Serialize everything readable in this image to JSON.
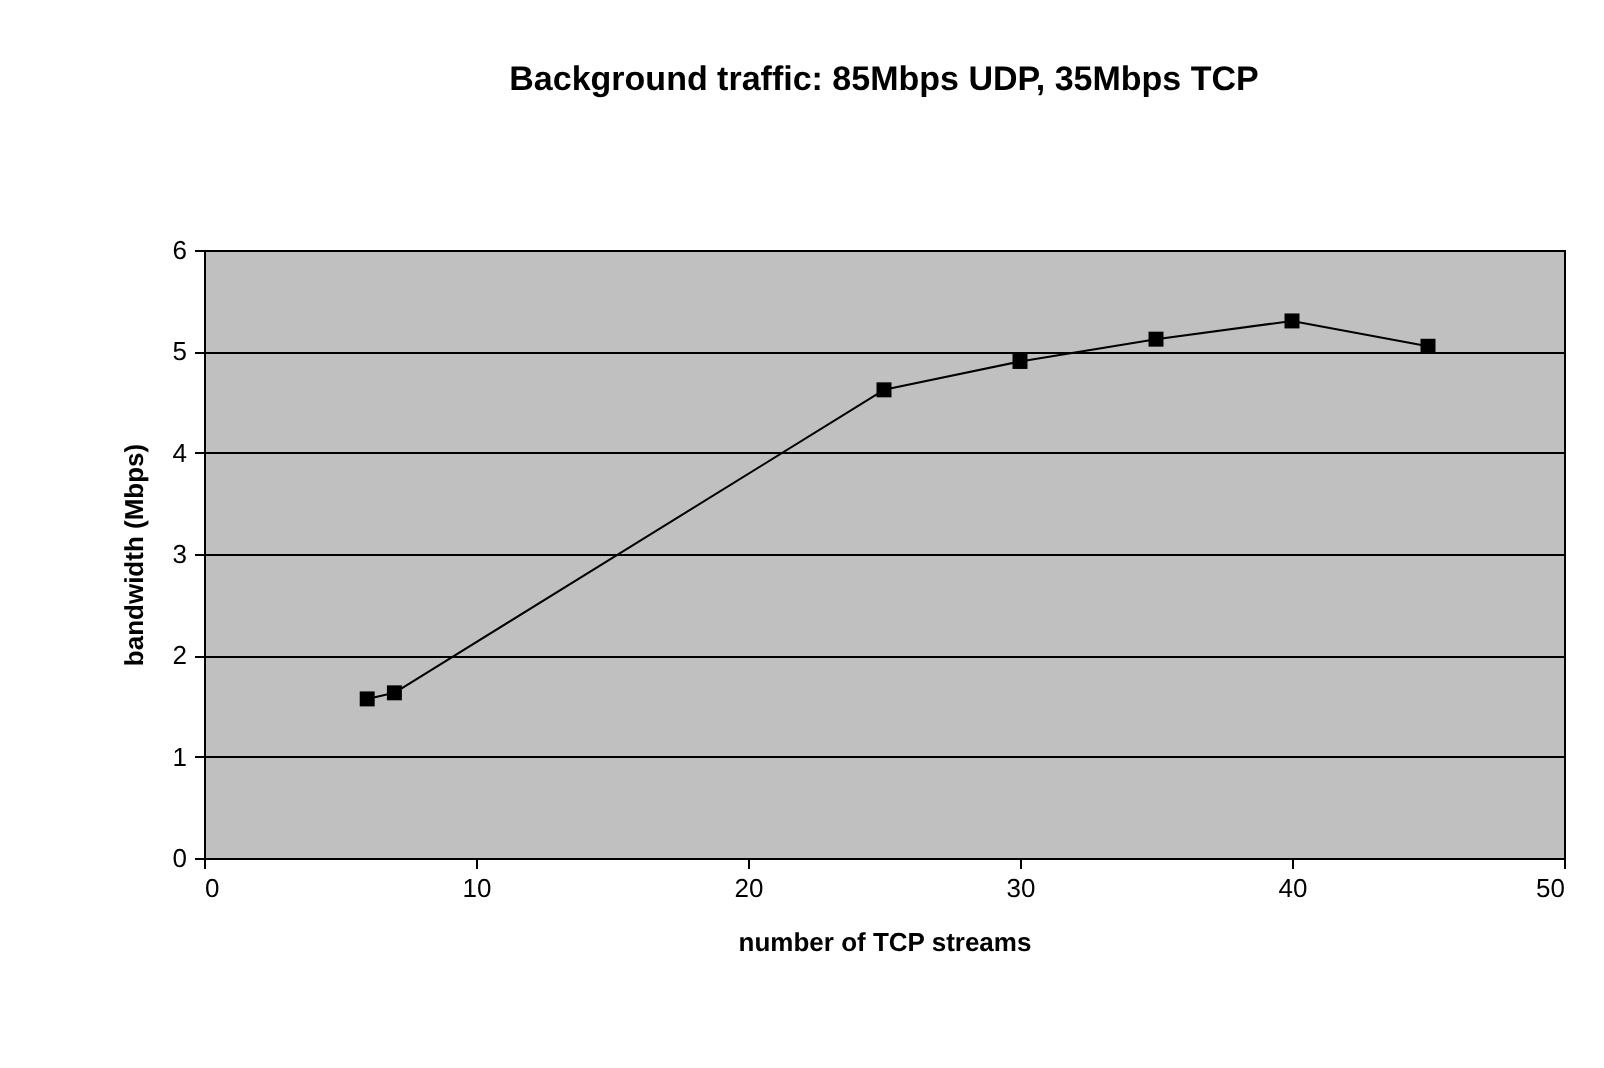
{
  "chart_data": {
    "type": "line",
    "title": "Background traffic: 85Mbps UDP, 35Mbps TCP",
    "xlabel": "number of TCP streams",
    "ylabel": "bandwidth (Mbps)",
    "x": [
      6,
      7,
      25,
      30,
      35,
      40,
      45
    ],
    "series": [
      {
        "color": "#000000",
        "values": [
          1.57,
          1.63,
          4.62,
          4.9,
          5.12,
          5.3,
          5.05
        ]
      }
    ],
    "xlim": [
      0,
      50
    ],
    "xticks": [
      0,
      10,
      20,
      30,
      40,
      50
    ],
    "ylim": [
      0,
      6
    ],
    "yticks": [
      0,
      1,
      2,
      3,
      4,
      5,
      6
    ],
    "grid": "y",
    "marker": "square",
    "line_style": "solid"
  }
}
